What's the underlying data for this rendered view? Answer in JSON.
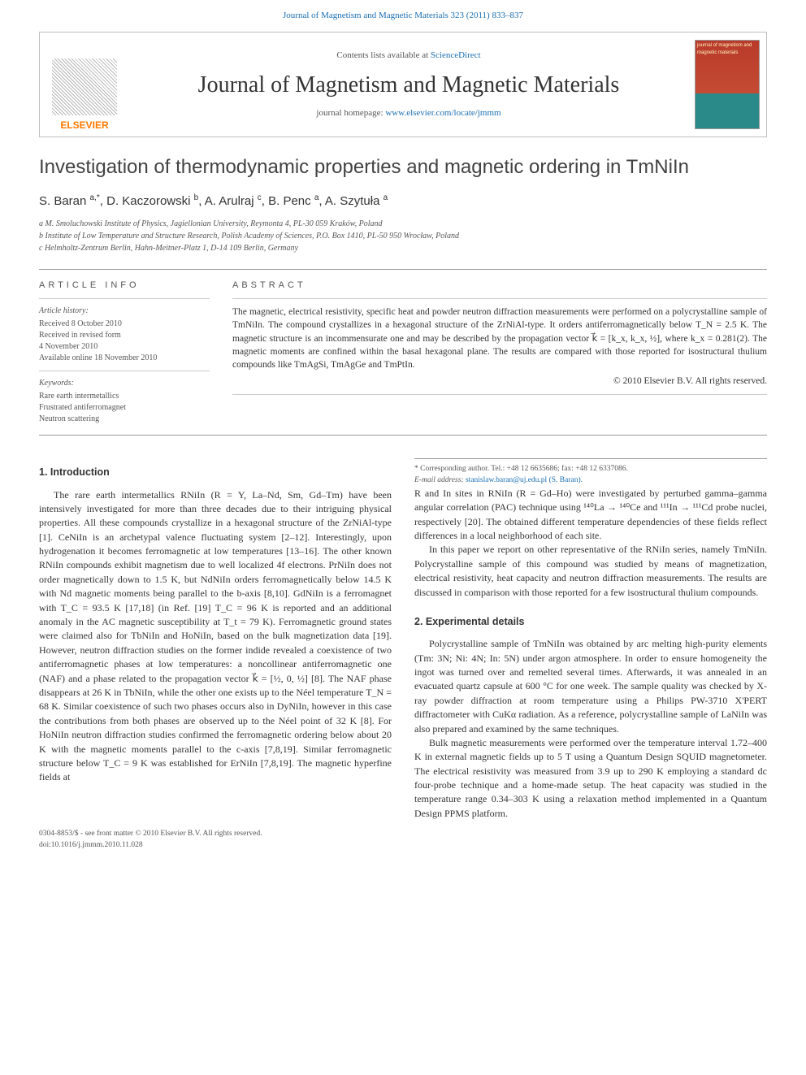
{
  "header_citation": "Journal of Magnetism and Magnetic Materials 323 (2011) 833–837",
  "masthead": {
    "contents_prefix": "Contents lists available at ",
    "contents_link": "ScienceDirect",
    "journal_name": "Journal of Magnetism and Magnetic Materials",
    "homepage_prefix": "journal homepage: ",
    "homepage_link": "www.elsevier.com/locate/jmmm",
    "publisher": "ELSEVIER",
    "cover_text": "journal of magnetism and magnetic materials"
  },
  "article": {
    "title": "Investigation of thermodynamic properties and magnetic ordering in TmNiIn",
    "authors_html": "S. Baran <sup>a,*</sup>, D. Kaczorowski <sup>b</sup>, A. Arulraj <sup>c</sup>, B. Penc <sup>a</sup>, A. Szytuła <sup>a</sup>",
    "affiliations": [
      "a M. Smoluchowski Institute of Physics, Jagiellonian University, Reymonta 4, PL-30 059 Kraków, Poland",
      "b Institute of Low Temperature and Structure Research, Polish Academy of Sciences, P.O. Box 1410, PL-50 950 Wrocław, Poland",
      "c Helmholtz-Zentrum Berlin, Hahn-Meitner-Platz 1, D-14 109 Berlin, Germany"
    ]
  },
  "info": {
    "heading": "ARTICLE INFO",
    "history_label": "Article history:",
    "history": [
      "Received 8 October 2010",
      "Received in revised form",
      "4 November 2010",
      "Available online 18 November 2010"
    ],
    "keywords_label": "Keywords:",
    "keywords": [
      "Rare earth intermetallics",
      "Frustrated antiferromagnet",
      "Neutron scattering"
    ]
  },
  "abstract": {
    "heading": "ABSTRACT",
    "text": "The magnetic, electrical resistivity, specific heat and powder neutron diffraction measurements were performed on a polycrystalline sample of TmNiIn. The compound crystallizes in a hexagonal structure of the ZrNiAl-type. It orders antiferromagnetically below T_N = 2.5 K. The magnetic structure is an incommensurate one and may be described by the propagation vector k⃗ = [k_x, k_x, ½], where k_x = 0.281(2). The magnetic moments are confined within the basal hexagonal plane. The results are compared with those reported for isostructural thulium compounds like TmAgSi, TmAgGe and TmPtIn.",
    "copyright": "© 2010 Elsevier B.V. All rights reserved."
  },
  "sections": {
    "intro_heading": "1. Introduction",
    "intro_p1": "The rare earth intermetallics RNiIn (R = Y, La–Nd, Sm, Gd–Tm) have been intensively investigated for more than three decades due to their intriguing physical properties. All these compounds crystallize in a hexagonal structure of the ZrNiAl-type [1]. CeNiIn is an archetypal valence fluctuating system [2–12]. Interestingly, upon hydrogenation it becomes ferromagnetic at low temperatures [13–16]. The other known RNiIn compounds exhibit magnetism due to well localized 4f electrons. PrNiIn does not order magnetically down to 1.5 K, but NdNiIn orders ferromagnetically below 14.5 K with Nd magnetic moments being parallel to the b-axis [8,10]. GdNiIn is a ferromagnet with T_C = 93.5 K [17,18] (in Ref. [19] T_C = 96 K is reported and an additional anomaly in the AC magnetic susceptibility at T_t = 79 K). Ferromagnetic ground states were claimed also for TbNiIn and HoNiIn, based on the bulk magnetization data [19]. However, neutron diffraction studies on the former indide revealed a coexistence of two antiferromagnetic phases at low temperatures: a noncollinear antiferromagnetic one (NAF) and a phase related to the propagation vector k⃗ = [½, 0, ½] [8]. The NAF phase disappears at 26 K in TbNiIn, while the other one exists up to the Néel temperature T_N = 68 K. Similar coexistence of such two phases occurs also in DyNiIn, however in this case the contributions from both phases are observed up to the Néel point of 32 K [8]. For HoNiIn neutron diffraction studies confirmed the ferromagnetic ordering below about 20 K with the magnetic moments parallel to the c-axis [7,8,19]. Similar ferromagnetic structure below T_C = 9 K was established for ErNiIn [7,8,19]. The magnetic hyperfine fields at",
    "intro_p2": "R and In sites in RNiIn (R = Gd–Ho) were investigated by perturbed gamma–gamma angular correlation (PAC) technique using ¹⁴⁰La → ¹⁴⁰Ce and ¹¹¹In → ¹¹¹Cd probe nuclei, respectively [20]. The obtained different temperature dependencies of these fields reflect differences in a local neighborhood of each site.",
    "intro_p3": "In this paper we report on other representative of the RNiIn series, namely TmNiIn. Polycrystalline sample of this compound was studied by means of magnetization, electrical resistivity, heat capacity and neutron diffraction measurements. The results are discussed in comparison with those reported for a few isostructural thulium compounds.",
    "exp_heading": "2. Experimental details",
    "exp_p1": "Polycrystalline sample of TmNiIn was obtained by arc melting high-purity elements (Tm: 3N; Ni: 4N; In: 5N) under argon atmosphere. In order to ensure homogeneity the ingot was turned over and remelted several times. Afterwards, it was annealed in an evacuated quartz capsule at 600 °C for one week. The sample quality was checked by X-ray powder diffraction at room temperature using a Philips PW-3710 X'PERT diffractometer with CuKα radiation. As a reference, polycrystalline sample of LaNiIn was also prepared and examined by the same techniques.",
    "exp_p2": "Bulk magnetic measurements were performed over the temperature interval 1.72–400 K in external magnetic fields up to 5 T using a Quantum Design SQUID magnetometer. The electrical resistivity was measured from 3.9 up to 290 K employing a standard dc four-probe technique and a home-made setup. The heat capacity was studied in the temperature range 0.34–303 K using a relaxation method implemented in a Quantum Design PPMS platform."
  },
  "footnote": {
    "corr": "* Corresponding author. Tel.: +48 12 6635686; fax: +48 12 6337086.",
    "email_label": "E-mail address: ",
    "email": "stanislaw.baran@uj.edu.pl (S. Baran)."
  },
  "doiblock": {
    "issn": "0304-8853/$ - see front matter © 2010 Elsevier B.V. All rights reserved.",
    "doi": "doi:10.1016/j.jmmm.2010.11.028"
  },
  "colors": {
    "link": "#1b6fb3",
    "elsevier_orange": "#ff7a00",
    "text": "#333333",
    "muted": "#555555",
    "rule": "#999999"
  }
}
